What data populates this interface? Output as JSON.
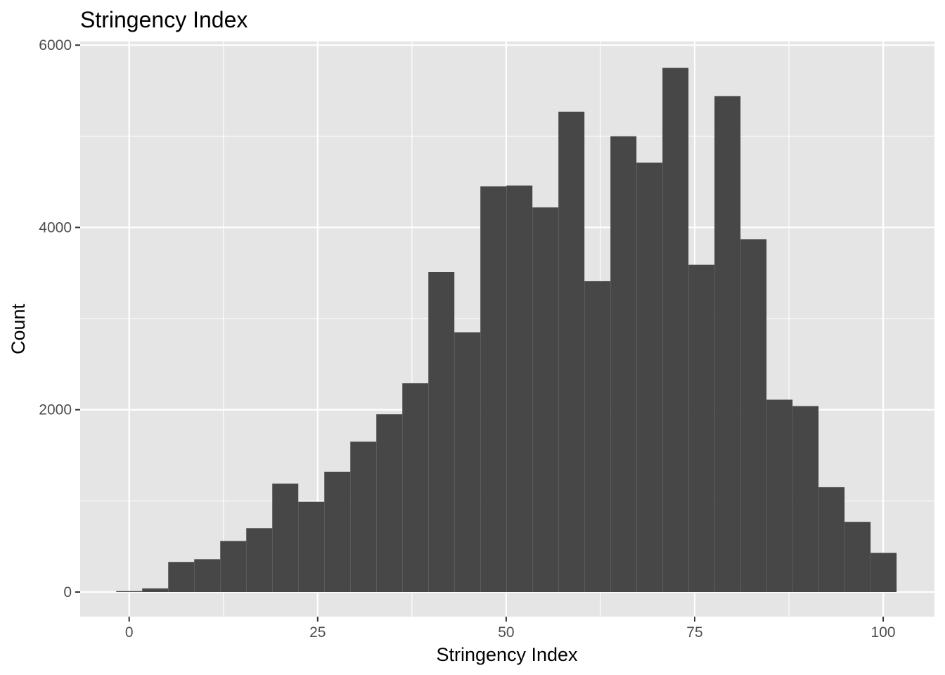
{
  "chart_data": {
    "type": "bar",
    "title": "Stringency Index",
    "xlabel": "Stringency Index",
    "ylabel": "Count",
    "xlim": [
      -6.5,
      106.8
    ],
    "ylim": [
      -270,
      6040
    ],
    "x_ticks": [
      0,
      25,
      50,
      75,
      100
    ],
    "x_tick_labels": [
      "0",
      "25",
      "50",
      "75",
      "100"
    ],
    "y_ticks": [
      0,
      2000,
      4000,
      6000
    ],
    "y_tick_labels": [
      "0",
      "2000",
      "4000",
      "6000"
    ],
    "bin_width": 3.45,
    "bin_start": -1.72,
    "values": [
      10,
      40,
      330,
      360,
      560,
      700,
      1190,
      990,
      1320,
      1650,
      1950,
      2290,
      3510,
      2850,
      4450,
      4460,
      4220,
      5270,
      3410,
      5000,
      4710,
      5750,
      3590,
      5440,
      3870,
      2110,
      2040,
      1150,
      770,
      430
    ],
    "grid": true,
    "legend": "none",
    "colors": {
      "panel_background": "#e5e5e5",
      "grid": "#ffffff",
      "bar_fill": "#474747",
      "tick_label": "#4d4d4d",
      "text": "#000000"
    }
  }
}
